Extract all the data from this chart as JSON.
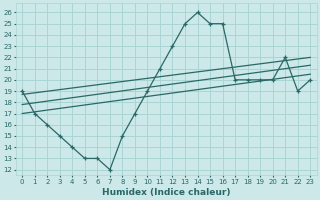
{
  "xlabel": "Humidex (Indice chaleur)",
  "bg_color": "#cce8e8",
  "grid_color": "#aad4d4",
  "line_color": "#2a6868",
  "xlim": [
    -0.5,
    23.5
  ],
  "ylim": [
    11.5,
    26.8
  ],
  "xticks": [
    0,
    1,
    2,
    3,
    4,
    5,
    6,
    7,
    8,
    9,
    10,
    11,
    12,
    13,
    14,
    15,
    16,
    17,
    18,
    19,
    20,
    21,
    22,
    23
  ],
  "yticks": [
    12,
    13,
    14,
    15,
    16,
    17,
    18,
    19,
    20,
    21,
    22,
    23,
    24,
    25,
    26
  ],
  "main_x": [
    0,
    1,
    2,
    3,
    4,
    5,
    6,
    7,
    8,
    9,
    10,
    11,
    12,
    13,
    14,
    15,
    16,
    17,
    18,
    19,
    20,
    21,
    22,
    23
  ],
  "main_y": [
    19,
    17,
    16,
    15,
    14,
    13,
    13,
    12,
    15,
    17,
    19,
    21,
    23,
    25,
    26,
    25,
    25,
    20,
    20,
    20,
    20,
    22,
    19,
    20
  ],
  "trend1_x": [
    0,
    23
  ],
  "trend1_y": [
    17.0,
    20.5
  ],
  "trend2_x": [
    0,
    23
  ],
  "trend2_y": [
    17.8,
    21.3
  ],
  "trend3_x": [
    0,
    23
  ],
  "trend3_y": [
    18.7,
    22.0
  ]
}
